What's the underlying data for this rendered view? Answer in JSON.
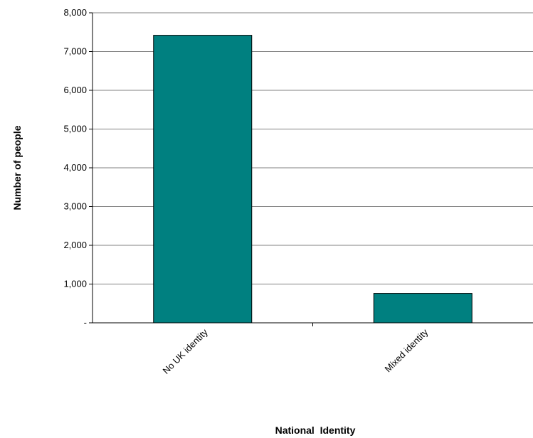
{
  "chart_data": {
    "type": "bar",
    "categories": [
      "No UK identity",
      "Mixed identity"
    ],
    "values": [
      7420,
      760
    ],
    "xlabel": "National  Identity",
    "ylabel": "Number of people",
    "ylim": [
      0,
      8000
    ],
    "yticks": [
      0,
      1000,
      2000,
      3000,
      4000,
      5000,
      6000,
      7000,
      8000
    ],
    "ytick_labels": [
      "-",
      "1,000",
      "2,000",
      "3,000",
      "4,000",
      "5,000",
      "6,000",
      "7,000",
      "8,000"
    ],
    "grid": true,
    "legend": "none",
    "bar_color": "#008080"
  }
}
